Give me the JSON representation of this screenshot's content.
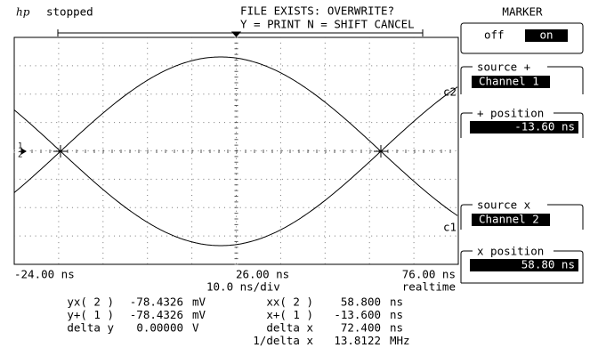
{
  "header": {
    "logo": "hp",
    "status": "stopped",
    "message_line1": "FILE EXISTS: OVERWRITE?",
    "message_line2": "Y = PRINT N = SHIFT CANCEL"
  },
  "marker_panel": {
    "title": "MARKER",
    "off": "off",
    "on": "on",
    "source_plus_label": "source +",
    "source_plus_value": "Channel 1",
    "plus_position_label": "+ position",
    "plus_position_value": "-13.60 ns",
    "source_x_label": "source x",
    "source_x_value": "Channel 2",
    "x_position_label": "x position",
    "x_position_value": "58.80 ns"
  },
  "display": {
    "ground_labels": [
      "1",
      "2"
    ],
    "trace_labels": [
      "c2",
      "c1"
    ]
  },
  "time_axis": {
    "left": "-24.00 ns",
    "center": "26.00 ns",
    "right": "76.00 ns",
    "scale": "10.0 ns/div",
    "mode": "realtime"
  },
  "measurements": {
    "left": [
      {
        "label": "yx( 2 )",
        "value": "-78.4326",
        "unit": "mV"
      },
      {
        "label": "y+( 1 )",
        "value": "-78.4326",
        "unit": "mV"
      },
      {
        "label": "delta y",
        "value": "0.00000",
        "unit": "V"
      }
    ],
    "right": [
      {
        "label": "xx( 2 )",
        "value": "58.800",
        "unit": "ns"
      },
      {
        "label": "x+( 1 )",
        "value": "-13.600",
        "unit": "ns"
      },
      {
        "label": "delta x",
        "value": "72.400",
        "unit": "ns"
      },
      {
        "label": "1/delta x",
        "value": "13.8122",
        "unit": "MHz"
      }
    ]
  }
}
